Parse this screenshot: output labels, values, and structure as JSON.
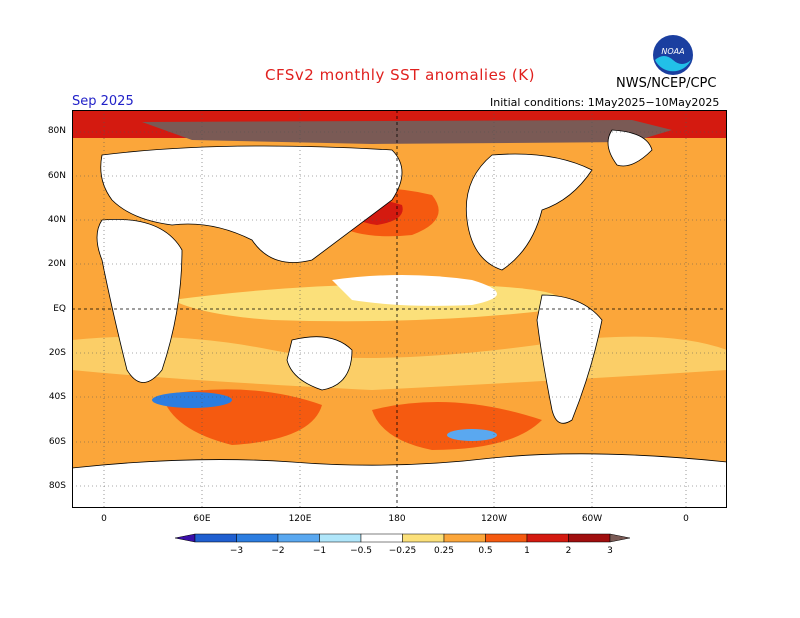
{
  "title": "CFSv2 monthly SST anomalies (K)",
  "agency": "NWS/NCEP/CPC",
  "logo_label": "NOAA",
  "month": "Sep 2025",
  "initial_conditions": "Initial conditions: 1May2025−10May2025",
  "lat_labels": [
    "80N",
    "60N",
    "40N",
    "20N",
    "EQ",
    "20S",
    "40S",
    "60S",
    "80S"
  ],
  "lon_labels": [
    "0",
    "60E",
    "120E",
    "180",
    "120W",
    "60W",
    "0"
  ],
  "legend": {
    "ticks": [
      "−3",
      "−2",
      "−1",
      "−0.5",
      "−0.25",
      "0.25",
      "0.5",
      "1",
      "2",
      "3"
    ],
    "colors": [
      "#3a0fa8",
      "#1f5fd0",
      "#2c7de0",
      "#5aa8f0",
      "#b0e6fa",
      "#ffffff",
      "#fbe07a",
      "#fba63a",
      "#f55a10",
      "#d41a10",
      "#a00e0e",
      "#7a5a55"
    ]
  },
  "colors": {
    "title": "#e0201e",
    "month": "#2222c8",
    "land": "#ffffff",
    "frame": "#000000"
  }
}
